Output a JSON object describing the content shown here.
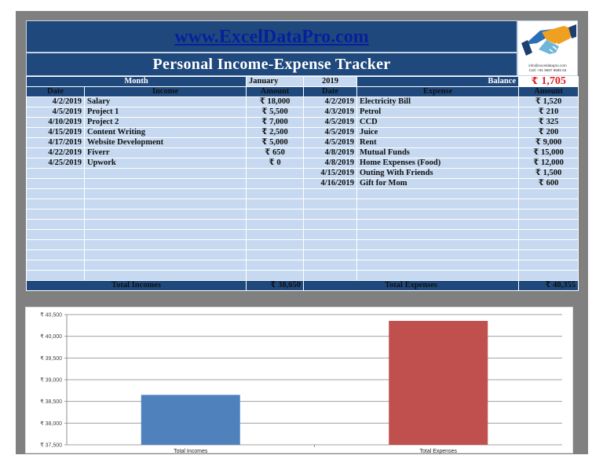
{
  "header": {
    "website": "www.ExcelDataPro.com",
    "title": "Personal Income-Expense Tracker",
    "logo": {
      "icon": "handshake-icon",
      "email": "info@exceldatapro.com",
      "phone": "Call: +91 9687 8585 63"
    }
  },
  "period": {
    "month_label": "Month",
    "month": "January",
    "year": "2019",
    "balance_label": "Balance",
    "balance": "₹ 1,705",
    "balance_color": "#e01f1f"
  },
  "income": {
    "columns": [
      "Date",
      "Income",
      "Amount"
    ],
    "rows": [
      {
        "date": "4/2/2019",
        "desc": "Salary",
        "amount": "₹ 18,000"
      },
      {
        "date": "4/5/2019",
        "desc": "Project 1",
        "amount": "₹ 5,500"
      },
      {
        "date": "4/10/2019",
        "desc": "Project 2",
        "amount": "₹ 7,000"
      },
      {
        "date": "4/15/2019",
        "desc": "Content Writing",
        "amount": "₹ 2,500"
      },
      {
        "date": "4/17/2019",
        "desc": "Website Development",
        "amount": "₹ 5,000"
      },
      {
        "date": "4/22/2019",
        "desc": "Fiverr",
        "amount": "₹ 650"
      },
      {
        "date": "4/25/2019",
        "desc": "Upwork",
        "amount": "₹ 0"
      }
    ],
    "total_label": "Total Incomes",
    "total": "₹ 38,650"
  },
  "expense": {
    "columns": [
      "Date",
      "Expense",
      "Amount"
    ],
    "rows": [
      {
        "date": "4/2/2019",
        "desc": "Electricity Bill",
        "amount": "₹ 1,520"
      },
      {
        "date": "4/3/2019",
        "desc": "Petrol",
        "amount": "₹ 210"
      },
      {
        "date": "4/5/2019",
        "desc": "CCD",
        "amount": "₹ 325"
      },
      {
        "date": "4/5/2019",
        "desc": "Juice",
        "amount": "₹ 200"
      },
      {
        "date": "4/5/2019",
        "desc": "Rent",
        "amount": "₹ 9,000"
      },
      {
        "date": "4/8/2019",
        "desc": "Mutual Funds",
        "amount": "₹ 15,000"
      },
      {
        "date": "4/8/2019",
        "desc": "Home Expenses (Food)",
        "amount": "₹ 12,000"
      },
      {
        "date": "4/15/2019",
        "desc": "Outing With Friends",
        "amount": "₹ 1,500"
      },
      {
        "date": "4/16/2019",
        "desc": "Gift for Mom",
        "amount": "₹ 600"
      }
    ],
    "total_label": "Total Expenses",
    "total": "₹ 40,355"
  },
  "colors": {
    "header_bg": "#1f497d",
    "row_bg": "#c6d9f0",
    "income_bar": "#4f81bd",
    "expense_bar": "#c0504d"
  },
  "chart_data": {
    "type": "bar",
    "title": "",
    "categories": [
      "Total Incomes",
      "Total Expenses"
    ],
    "values": [
      38650,
      40355
    ],
    "colors": [
      "#4f81bd",
      "#c0504d"
    ],
    "xlabel": "",
    "ylabel": "",
    "ylim": [
      37500,
      40500
    ],
    "yticks": [
      "₹ 40,500",
      "₹ 40,000",
      "₹ 39,500",
      "₹ 39,000",
      "₹ 38,500",
      "₹ 38,000",
      "₹ 37,500"
    ],
    "grid": true,
    "legend": false
  }
}
